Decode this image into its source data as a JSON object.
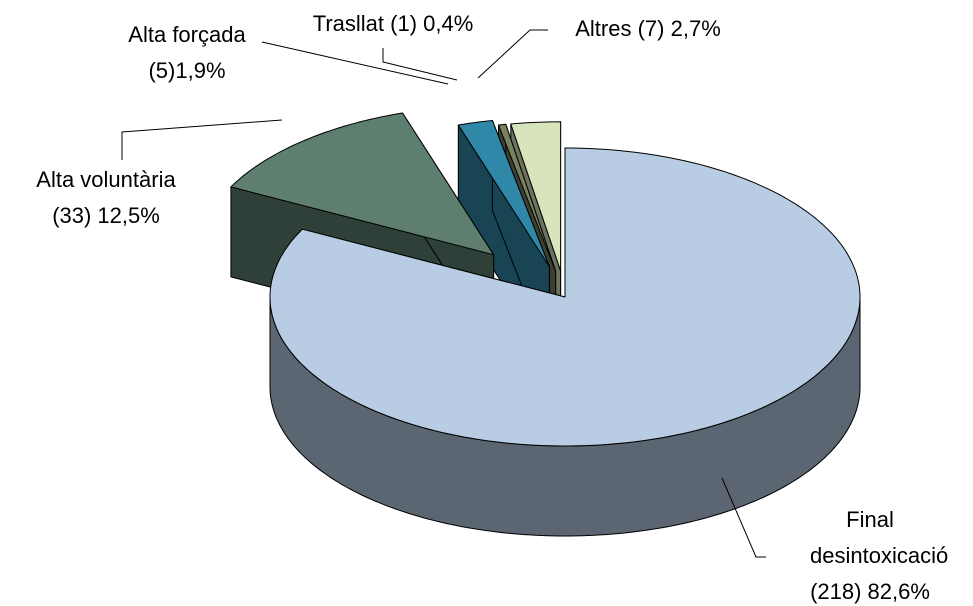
{
  "chart_data": {
    "type": "pie",
    "three_d": true,
    "categories": [
      "Final desintoxicació",
      "Alta voluntària",
      "Alta forçada",
      "Trasllat",
      "Altres"
    ],
    "values": [
      82.6,
      12.5,
      1.9,
      0.4,
      2.7
    ],
    "value_labels": [
      "(218) 82,6%",
      "(33) 12,5%",
      "(5)1,9%",
      "(1) 0,4%",
      "(7) 2,7%"
    ],
    "colors": [
      "#b8cce4",
      "#5e7f70",
      "#2f88a8",
      "#7a8060",
      "#d8e4bc"
    ]
  }
}
